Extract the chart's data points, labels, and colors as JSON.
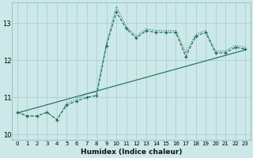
{
  "xlabel": "Humidex (Indice chaleur)",
  "ylabel": "",
  "bg_color": "#cce8e8",
  "line_color": "#1a6b5a",
  "xlim": [
    -0.5,
    23.5
  ],
  "ylim": [
    9.85,
    13.55
  ],
  "yticks": [
    10,
    11,
    12,
    13
  ],
  "xticks": [
    0,
    1,
    2,
    3,
    4,
    5,
    6,
    7,
    8,
    9,
    10,
    11,
    12,
    13,
    14,
    15,
    16,
    17,
    18,
    19,
    20,
    21,
    22,
    23
  ],
  "dotted_x": [
    0,
    1,
    2,
    3,
    4,
    5,
    6,
    7,
    8,
    9,
    10,
    11,
    12,
    13,
    14,
    15,
    16,
    17,
    18,
    19,
    20,
    21,
    22,
    23
  ],
  "dotted_y": [
    10.6,
    10.5,
    10.5,
    10.6,
    10.4,
    10.85,
    10.95,
    11.1,
    11.15,
    12.45,
    13.45,
    12.9,
    12.65,
    12.85,
    12.8,
    12.8,
    12.8,
    12.2,
    12.7,
    12.8,
    12.25,
    12.25,
    12.4,
    12.35
  ],
  "dashed_x": [
    0,
    1,
    2,
    3,
    4,
    5,
    6,
    7,
    8,
    9,
    10,
    11,
    12,
    13,
    14,
    15,
    16,
    17,
    18,
    19,
    20,
    21,
    22,
    23
  ],
  "dashed_y": [
    10.6,
    10.5,
    10.5,
    10.6,
    10.4,
    10.8,
    10.9,
    11.0,
    11.05,
    12.4,
    13.3,
    12.85,
    12.6,
    12.8,
    12.75,
    12.75,
    12.75,
    12.1,
    12.65,
    12.75,
    12.2,
    12.2,
    12.35,
    12.3
  ],
  "trend_x": [
    0,
    23
  ],
  "trend_y": [
    10.58,
    12.28
  ]
}
